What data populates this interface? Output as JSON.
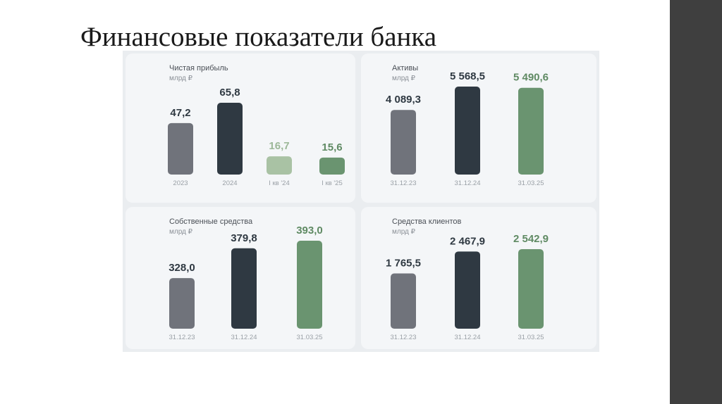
{
  "slide": {
    "title": "Финансовые показатели банка"
  },
  "colors": {
    "gray": "#70737b",
    "dark": "#2f3942",
    "green": "#6a9470",
    "lightgreen": "#a9c2a4",
    "value_dark": "#2f3942",
    "value_green": "#5f8a63",
    "value_lightgreen": "#9cb898"
  },
  "chart_data": [
    {
      "type": "bar",
      "title": "Чистая прибыль",
      "unit": "млрд ₽",
      "categories": [
        "2023",
        "2024",
        "I кв '24",
        "I кв '25"
      ],
      "values": [
        47.2,
        65.8,
        16.7,
        15.6
      ],
      "value_labels": [
        "47,2",
        "65,8",
        "16,7",
        "15,6"
      ],
      "bar_colors": [
        "gray",
        "dark",
        "lightgreen",
        "green"
      ],
      "label_colors": [
        "value_dark",
        "value_dark",
        "value_lightgreen",
        "value_green"
      ],
      "ylim": [
        0,
        65.8
      ]
    },
    {
      "type": "bar",
      "title": "Активы",
      "unit": "млрд ₽",
      "categories": [
        "31.12.23",
        "31.12.24",
        "31.03.25"
      ],
      "values": [
        4089.3,
        5568.5,
        5490.6
      ],
      "value_labels": [
        "4 089,3",
        "5 568,5",
        "5 490,6"
      ],
      "bar_colors": [
        "gray",
        "dark",
        "green"
      ],
      "label_colors": [
        "value_dark",
        "value_dark",
        "value_green"
      ],
      "ylim": [
        0,
        5568.5
      ]
    },
    {
      "type": "bar",
      "title": "Собственные средства",
      "unit": "млрд ₽",
      "categories": [
        "31.12.23",
        "31.12.24",
        "31.03.25"
      ],
      "values": [
        328.0,
        379.8,
        393.0
      ],
      "value_labels": [
        "328,0",
        "379,8",
        "393,0"
      ],
      "bar_colors": [
        "gray",
        "dark",
        "green"
      ],
      "label_colors": [
        "value_dark",
        "value_dark",
        "value_green"
      ],
      "ylim": [
        240,
        393.0
      ]
    },
    {
      "type": "bar",
      "title": "Средства клиентов",
      "unit": "млрд ₽",
      "categories": [
        "31.12.23",
        "31.12.24",
        "31.03.25"
      ],
      "values": [
        1765.5,
        2467.9,
        2542.9
      ],
      "value_labels": [
        "1 765,5",
        "2 467,9",
        "2 542,9"
      ],
      "bar_colors": [
        "gray",
        "dark",
        "green"
      ],
      "label_colors": [
        "value_dark",
        "value_dark",
        "value_green"
      ],
      "ylim": [
        0,
        2542.9
      ]
    }
  ]
}
